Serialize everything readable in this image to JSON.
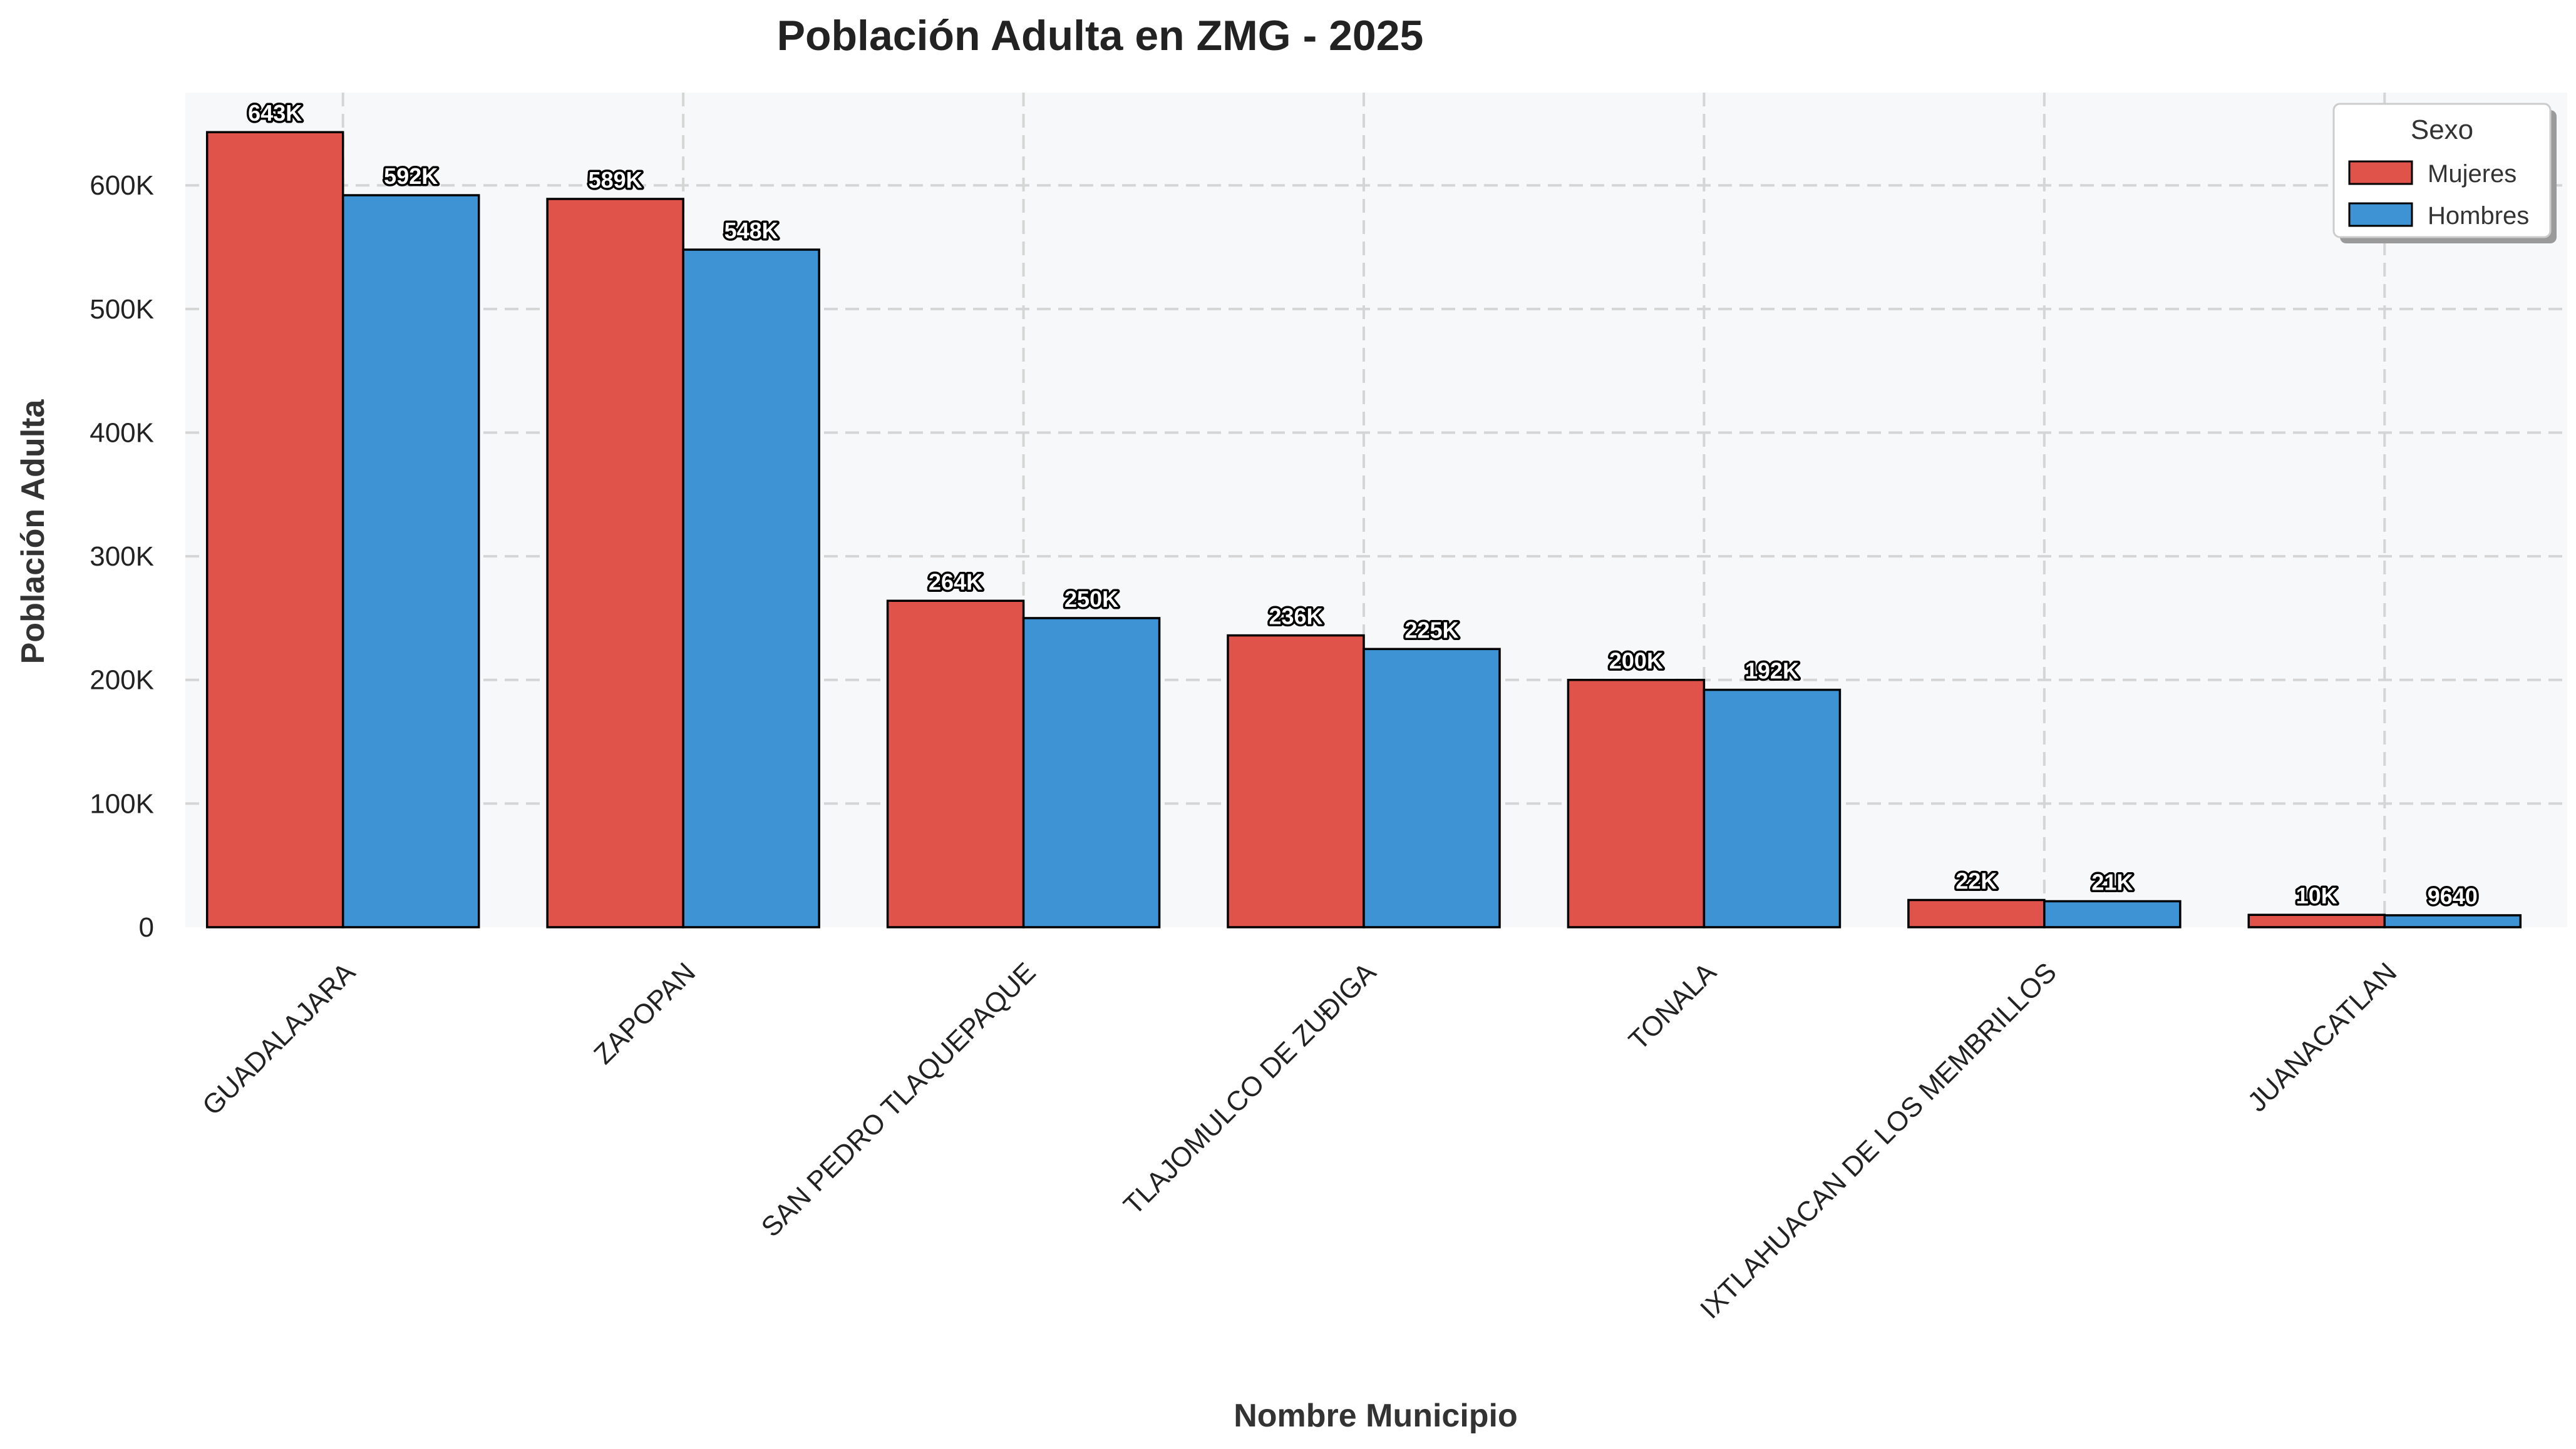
{
  "colors": {
    "mujeres": "#e0534a",
    "hombres": "#3d93d3",
    "plot_background": "#f7f8fa",
    "grid": "#d5d5d5"
  },
  "legend": {
    "title": "Sexo",
    "placement": "top-right"
  },
  "chart_data": {
    "type": "bar",
    "title": "Población Adulta en ZMG - 2025",
    "xlabel": "Nombre Municipio",
    "ylabel": "Población Adulta",
    "ylim": [
      0,
      675000
    ],
    "grid": true,
    "yticks": [
      0,
      100000,
      200000,
      300000,
      400000,
      500000,
      600000
    ],
    "ytick_labels": [
      "0",
      "100K",
      "200K",
      "300K",
      "400K",
      "500K",
      "600K"
    ],
    "categories": [
      "GUADALAJARA",
      "ZAPOPAN",
      "SAN PEDRO TLAQUEPAQUE",
      "TLAJOMULCO DE ZUÐIGA",
      "TONALA",
      "IXTLAHUACAN DE LOS MEMBRILLOS",
      "JUANACATLAN"
    ],
    "series": [
      {
        "name": "Mujeres",
        "values": [
          643000,
          589000,
          264000,
          236000,
          200000,
          22000,
          10000
        ],
        "labels": [
          "643K",
          "589K",
          "264K",
          "236K",
          "200K",
          "22K",
          "10K"
        ]
      },
      {
        "name": "Hombres",
        "values": [
          592000,
          548000,
          250000,
          225000,
          192000,
          21000,
          9640
        ],
        "labels": [
          "592K",
          "548K",
          "250K",
          "225K",
          "192K",
          "21K",
          "9640"
        ]
      }
    ]
  }
}
